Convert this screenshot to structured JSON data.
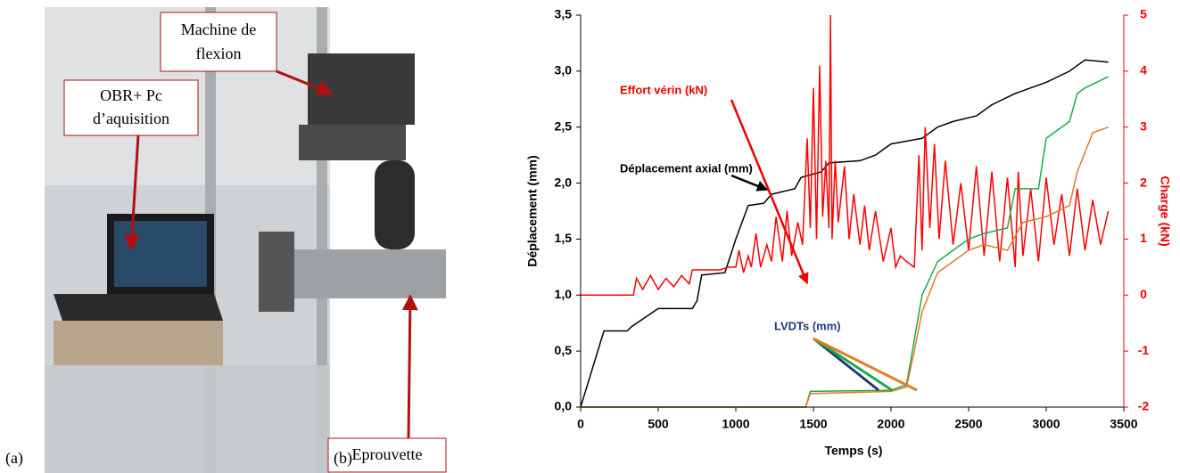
{
  "panels": {
    "a": "(a)",
    "b": "(b)"
  },
  "photo": {
    "machine": [
      "Machine de",
      "flexion"
    ],
    "obr": [
      "OBR+ Pc",
      "d’aquisition"
    ],
    "eprouvette": "Eprouvette"
  },
  "chart_data": {
    "type": "line",
    "xlabel": "Temps (s)",
    "ylabel": "Déplacement  (mm)",
    "y2label": "Charge (kN)",
    "xlim": [
      0,
      3500
    ],
    "xticks": [
      0,
      500,
      1000,
      1500,
      2000,
      2500,
      3000,
      3500
    ],
    "ylim": [
      0,
      3.5
    ],
    "yticks": [
      {
        "value": 0,
        "label": "0,0"
      },
      {
        "value": 0.5,
        "label": "0,5"
      },
      {
        "value": 1,
        "label": "1,0"
      },
      {
        "value": 1.5,
        "label": "1,5"
      },
      {
        "value": 2,
        "label": "2,0"
      },
      {
        "value": 2.5,
        "label": "2,5"
      },
      {
        "value": 3,
        "label": "3,0"
      },
      {
        "value": 3.5,
        "label": "3,5"
      }
    ],
    "y2lim": [
      -2,
      5
    ],
    "y2ticks": [
      -2,
      -1,
      0,
      1,
      2,
      3,
      4,
      5
    ],
    "annotations": [
      "Effort vérin (kN)",
      "Déplacement axial (mm)",
      "LVDTs (mm)"
    ],
    "series": [
      {
        "color": "#000000",
        "x": [
          0,
          150,
          300,
          330,
          500,
          720,
          750,
          780,
          930,
          1000,
          1080,
          1180,
          1230,
          1380,
          1420,
          1550,
          1600,
          1800,
          1900,
          2000,
          2200,
          2300,
          2400,
          2550,
          2650,
          2800,
          2900,
          3000,
          3150,
          3250,
          3400
        ],
        "values": [
          0,
          0.68,
          0.68,
          0.72,
          0.88,
          0.88,
          0.95,
          1.18,
          1.2,
          1.5,
          1.8,
          1.82,
          1.9,
          1.95,
          2.05,
          2.1,
          2.18,
          2.2,
          2.25,
          2.35,
          2.4,
          2.5,
          2.55,
          2.6,
          2.7,
          2.8,
          2.85,
          2.9,
          3.0,
          3.1,
          3.08
        ]
      },
      {
        "color": "#ff0000",
        "axis": "y2",
        "x": [
          0,
          340,
          360,
          400,
          450,
          500,
          550,
          600,
          650,
          700,
          720,
          800,
          900,
          950,
          1000,
          1020,
          1050,
          1080,
          1100,
          1130,
          1160,
          1200,
          1230,
          1260,
          1300,
          1330,
          1360,
          1400,
          1430,
          1460,
          1480,
          1500,
          1520,
          1540,
          1560,
          1580,
          1600,
          1610,
          1620,
          1640,
          1660,
          1700,
          1730,
          1760,
          1800,
          1830,
          1860,
          1900,
          1950,
          2000,
          2030,
          2060,
          2100,
          2150,
          2180,
          2200,
          2220,
          2250,
          2280,
          2310,
          2350,
          2400,
          2450,
          2500,
          2550,
          2600,
          2650,
          2700,
          2750,
          2800,
          2820,
          2850,
          2900,
          2950,
          3000,
          3050,
          3100,
          3150,
          3200,
          3250,
          3300,
          3350,
          3400
        ],
        "values": [
          0,
          0,
          0.3,
          0.1,
          0.35,
          0.1,
          0.3,
          0.15,
          0.35,
          0.2,
          0.45,
          0.45,
          0.45,
          0.5,
          0.5,
          0.8,
          0.4,
          0.7,
          0.5,
          1.1,
          0.5,
          0.9,
          0.6,
          1.4,
          0.6,
          1.5,
          0.7,
          1.3,
          0.9,
          2.8,
          1.2,
          3.7,
          1.0,
          4.1,
          1.4,
          2.4,
          1.2,
          5.0,
          1.0,
          2.4,
          1.3,
          2.3,
          1.0,
          1.8,
          0.9,
          1.6,
          0.8,
          1.5,
          0.6,
          1.2,
          0.5,
          0.7,
          0.6,
          0.5,
          2.5,
          0.8,
          3.0,
          1.2,
          2.7,
          1.0,
          2.4,
          0.9,
          2.0,
          0.8,
          2.3,
          0.7,
          2.2,
          0.6,
          2.1,
          0.5,
          2.2,
          0.7,
          1.9,
          0.6,
          2.1,
          0.9,
          1.8,
          0.7,
          1.9,
          0.8,
          1.7,
          0.9,
          1.5
        ]
      },
      {
        "color": "#1aab4b",
        "x": [
          0,
          1450,
          1480,
          2000,
          2100,
          2150,
          2200,
          2300,
          2500,
          2600,
          2750,
          2800,
          2950,
          3000,
          3150,
          3200,
          3250,
          3400
        ],
        "values": [
          0,
          0,
          0.14,
          0.15,
          0.2,
          0.6,
          1.0,
          1.3,
          1.5,
          1.55,
          1.6,
          1.95,
          1.95,
          2.4,
          2.55,
          2.8,
          2.85,
          2.95
        ]
      },
      {
        "color": "#e07b24",
        "x": [
          0,
          1450,
          1480,
          2000,
          2100,
          2150,
          2200,
          2300,
          2500,
          2600,
          2750,
          2850,
          3000,
          3150,
          3200,
          3300,
          3400
        ],
        "values": [
          0,
          0,
          0.12,
          0.14,
          0.18,
          0.5,
          0.85,
          1.2,
          1.4,
          1.45,
          1.4,
          1.65,
          1.7,
          1.8,
          2.1,
          2.45,
          2.5
        ]
      }
    ]
  }
}
